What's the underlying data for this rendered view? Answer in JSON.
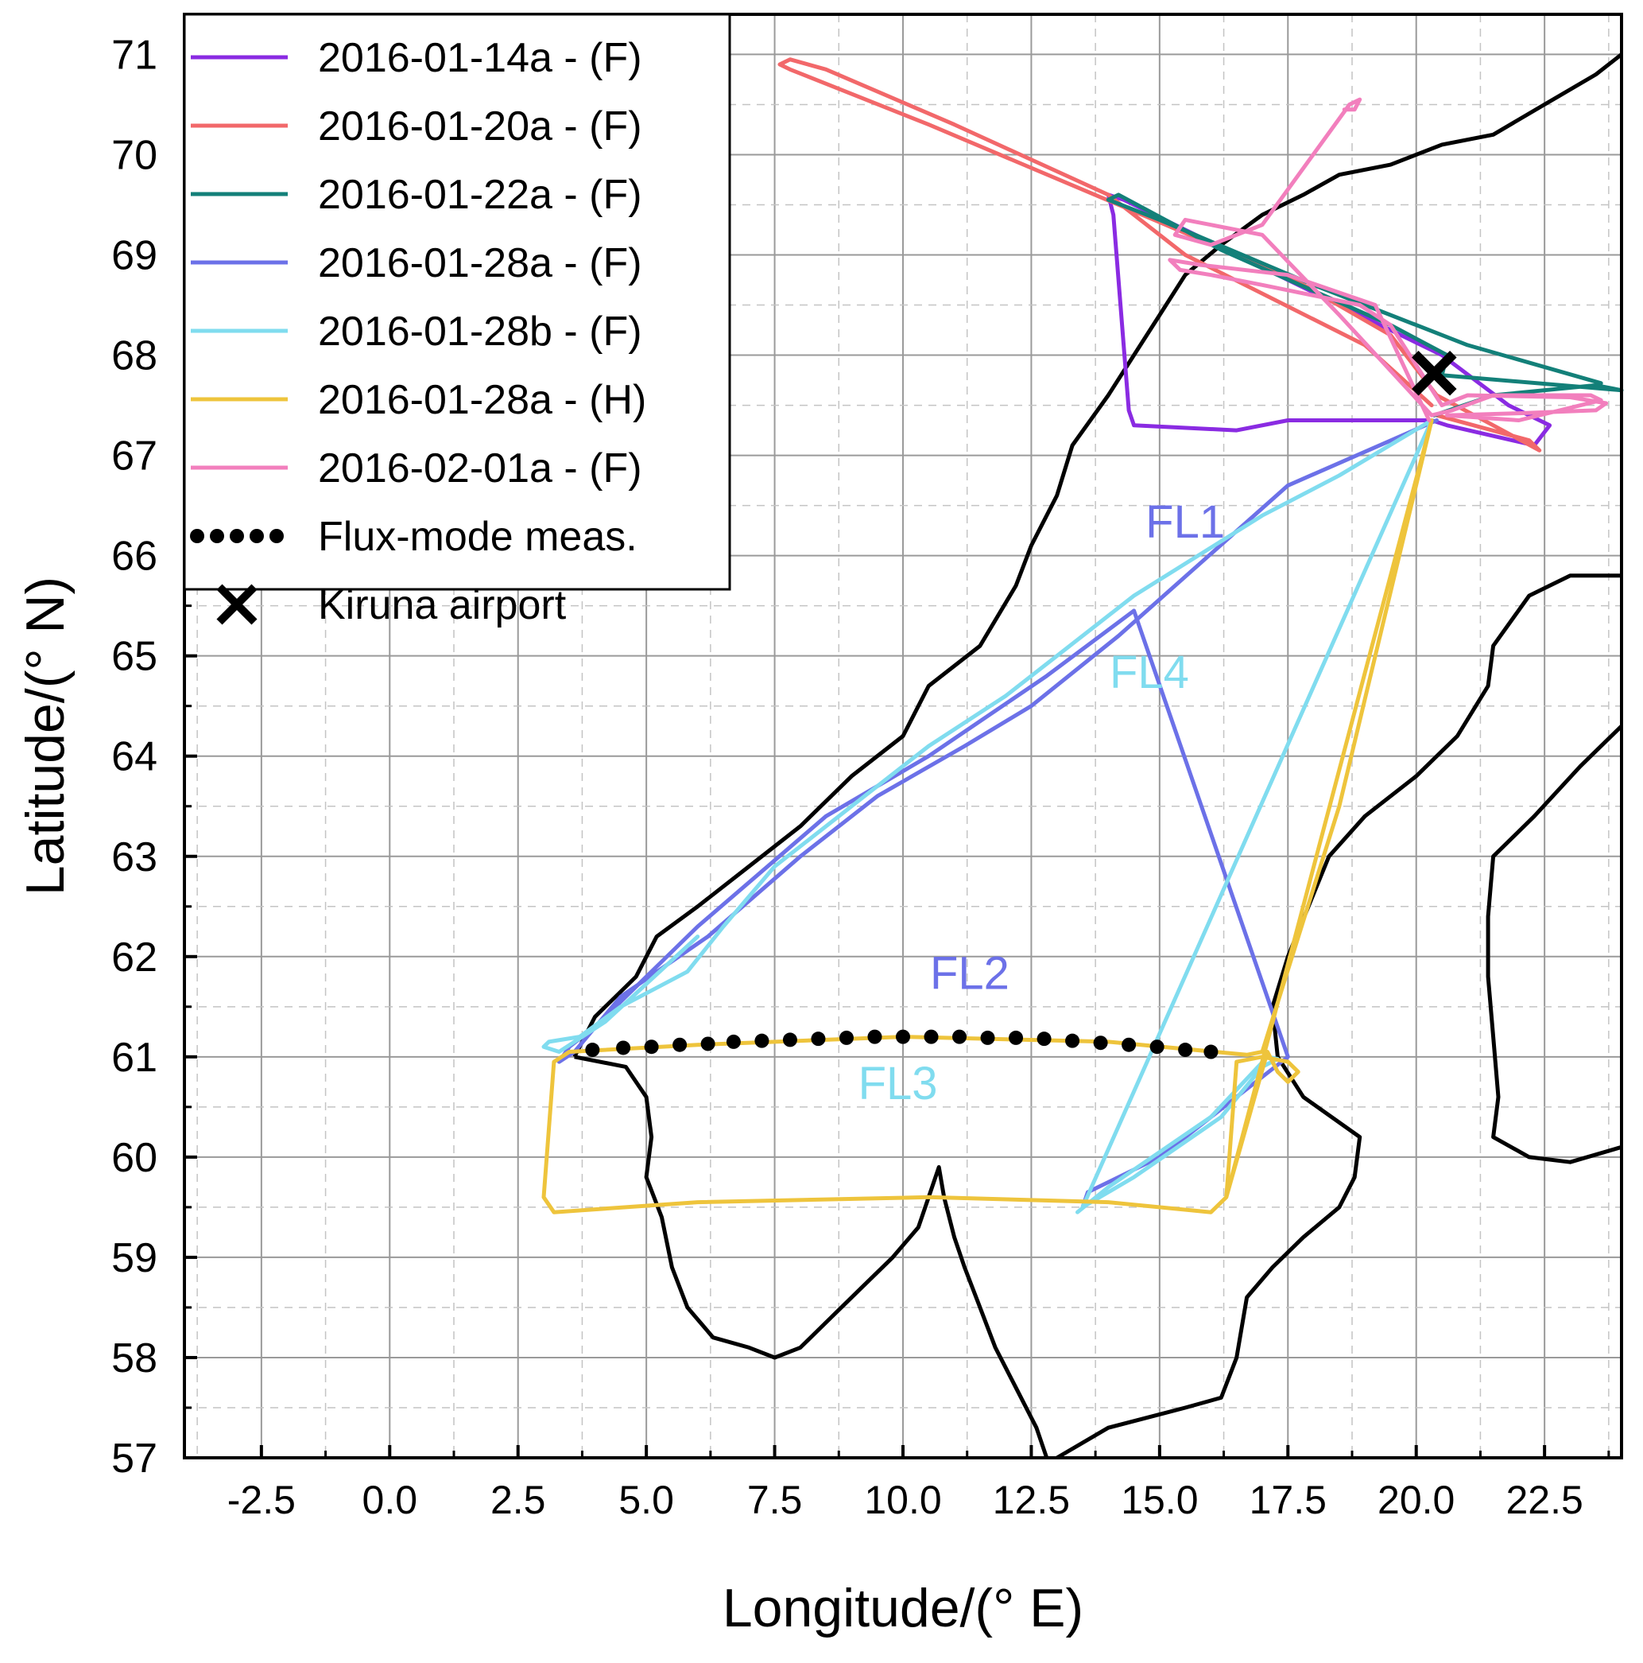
{
  "chart_data": {
    "type": "line",
    "xlabel": "Longitude/(° E)",
    "ylabel": "Latitude/(° N)",
    "xlim": [
      -4.0,
      24.0
    ],
    "ylim": [
      57.0,
      71.4
    ],
    "xticks": [
      "-2.5",
      "0.0",
      "2.5",
      "5.0",
      "7.5",
      "10.0",
      "12.5",
      "15.0",
      "17.5",
      "20.0",
      "22.5"
    ],
    "yticks": [
      "57",
      "58",
      "59",
      "60",
      "61",
      "62",
      "63",
      "64",
      "65",
      "66",
      "67",
      "68",
      "69",
      "70",
      "71"
    ],
    "grid": true,
    "legend_position": "top-left",
    "series": [
      {
        "name": "2016-01-14a - (F)",
        "color": "#8a2be2",
        "points": [
          [
            20.2,
            67.35
          ],
          [
            17.5,
            67.35
          ],
          [
            16.5,
            67.25
          ],
          [
            14.5,
            67.3
          ],
          [
            14.4,
            67.45
          ],
          [
            14.1,
            69.4
          ],
          [
            14.0,
            69.6
          ],
          [
            14.3,
            69.55
          ],
          [
            16.5,
            69.0
          ],
          [
            18.5,
            68.5
          ],
          [
            20.5,
            68.0
          ],
          [
            21.8,
            67.5
          ],
          [
            22.6,
            67.3
          ],
          [
            22.3,
            67.1
          ],
          [
            20.6,
            67.3
          ],
          [
            20.3,
            67.35
          ]
        ]
      },
      {
        "name": "2016-01-20a - (F)",
        "color": "#f2686a",
        "points": [
          [
            20.3,
            67.5
          ],
          [
            19.0,
            68.1
          ],
          [
            15.5,
            69.0
          ],
          [
            14.0,
            69.6
          ],
          [
            11.0,
            70.3
          ],
          [
            8.5,
            70.85
          ],
          [
            7.8,
            70.95
          ],
          [
            7.6,
            70.9
          ],
          [
            7.8,
            70.85
          ],
          [
            10.5,
            70.3
          ],
          [
            14.2,
            69.5
          ],
          [
            16.5,
            69.0
          ],
          [
            17.8,
            68.7
          ],
          [
            19.5,
            68.2
          ],
          [
            20.4,
            67.6
          ],
          [
            21.5,
            67.3
          ],
          [
            22.4,
            67.05
          ],
          [
            22.2,
            67.15
          ],
          [
            20.4,
            67.4
          ]
        ]
      },
      {
        "name": "2016-01-22a - (F)",
        "color": "#138079",
        "points": [
          [
            20.35,
            67.4
          ],
          [
            21.5,
            67.6
          ],
          [
            23.5,
            67.7
          ],
          [
            24.0,
            67.65
          ],
          [
            20.5,
            67.8
          ],
          [
            20.6,
            68.0
          ],
          [
            19.5,
            68.3
          ],
          [
            16.2,
            69.05
          ],
          [
            14.2,
            69.6
          ],
          [
            14.0,
            69.55
          ],
          [
            15.0,
            69.35
          ],
          [
            18.0,
            68.7
          ],
          [
            21.0,
            68.1
          ],
          [
            23.6,
            67.72
          ]
        ]
      },
      {
        "name": "2016-01-28a - (F)",
        "color": "#6c71e8",
        "points": [
          [
            20.4,
            67.35
          ],
          [
            17.5,
            66.7
          ],
          [
            14.2,
            65.2
          ],
          [
            12.5,
            64.5
          ],
          [
            11.2,
            64.1
          ],
          [
            9.5,
            63.6
          ],
          [
            8.0,
            63.0
          ],
          [
            6.2,
            62.2
          ],
          [
            4.5,
            61.6
          ],
          [
            3.6,
            61.05
          ],
          [
            3.3,
            60.95
          ],
          [
            3.5,
            61.1
          ],
          [
            4.0,
            61.3
          ],
          [
            6.0,
            62.3
          ],
          [
            8.5,
            63.4
          ],
          [
            10.5,
            64.0
          ],
          [
            12.8,
            64.8
          ],
          [
            14.5,
            65.45
          ],
          [
            17.5,
            61.0
          ],
          [
            16.5,
            60.6
          ],
          [
            15.0,
            60.0
          ],
          [
            13.6,
            59.65
          ],
          [
            13.5,
            59.5
          ]
        ]
      },
      {
        "name": "2016-01-28b - (F)",
        "color": "#80dcef",
        "points": [
          [
            13.4,
            59.45
          ],
          [
            14.0,
            59.7
          ],
          [
            16.0,
            60.4
          ],
          [
            17.1,
            61.0
          ],
          [
            17.3,
            60.98
          ],
          [
            17.0,
            60.9
          ],
          [
            16.2,
            60.4
          ],
          [
            14.5,
            59.8
          ],
          [
            13.5,
            59.5
          ],
          [
            20.3,
            67.35
          ],
          [
            18.5,
            66.8
          ],
          [
            17.0,
            66.4
          ],
          [
            14.5,
            65.6
          ],
          [
            12.0,
            64.6
          ],
          [
            10.5,
            64.1
          ],
          [
            9.0,
            63.5
          ],
          [
            7.5,
            62.9
          ],
          [
            6.5,
            62.3
          ],
          [
            5.8,
            61.85
          ],
          [
            4.5,
            61.5
          ],
          [
            3.7,
            61.2
          ],
          [
            3.1,
            61.15
          ],
          [
            3.0,
            61.1
          ],
          [
            3.3,
            61.05
          ],
          [
            4.2,
            61.35
          ],
          [
            6.0,
            62.2
          ]
        ]
      },
      {
        "name": "2016-01-28a - (H)",
        "color": "#eec43c",
        "points": [
          [
            20.3,
            67.35
          ],
          [
            18.5,
            63.5
          ],
          [
            17.0,
            61.05
          ],
          [
            16.7,
            61.02
          ],
          [
            14.0,
            61.15
          ],
          [
            10.0,
            61.2
          ],
          [
            6.0,
            61.12
          ],
          [
            3.5,
            61.05
          ],
          [
            3.2,
            60.95
          ],
          [
            3.0,
            59.6
          ],
          [
            3.2,
            59.45
          ],
          [
            6.0,
            59.55
          ],
          [
            10.5,
            59.6
          ],
          [
            14.0,
            59.55
          ],
          [
            16.0,
            59.45
          ],
          [
            16.3,
            59.6
          ],
          [
            16.5,
            60.95
          ],
          [
            17.0,
            61.0
          ],
          [
            17.5,
            60.95
          ],
          [
            17.7,
            60.85
          ],
          [
            17.5,
            60.75
          ],
          [
            17.3,
            60.85
          ],
          [
            17.1,
            61.05
          ],
          [
            16.3,
            59.6
          ],
          [
            20.3,
            67.35
          ]
        ]
      },
      {
        "name": "2016-02-01a - (F)",
        "color": "#f27fbd",
        "points": [
          [
            20.25,
            67.35
          ],
          [
            19.2,
            68.5
          ],
          [
            17.5,
            68.8
          ],
          [
            15.8,
            68.9
          ],
          [
            15.2,
            68.95
          ],
          [
            15.4,
            68.85
          ],
          [
            16.0,
            68.8
          ],
          [
            17.0,
            68.7
          ],
          [
            18.9,
            68.5
          ],
          [
            19.5,
            68.3
          ],
          [
            20.0,
            67.9
          ],
          [
            20.5,
            67.5
          ],
          [
            21.0,
            67.6
          ],
          [
            23.0,
            67.58
          ],
          [
            23.7,
            67.52
          ],
          [
            23.5,
            67.45
          ],
          [
            22.0,
            67.42
          ],
          [
            20.6,
            67.4
          ],
          [
            22.0,
            67.35
          ],
          [
            23.6,
            67.55
          ],
          [
            23.4,
            67.6
          ],
          [
            21.5,
            67.6
          ],
          [
            20.7,
            67.45
          ],
          [
            20.3,
            67.4
          ],
          [
            18.5,
            68.4
          ],
          [
            17.0,
            69.2
          ],
          [
            15.5,
            69.35
          ],
          [
            15.3,
            69.2
          ],
          [
            16.0,
            69.1
          ],
          [
            17.0,
            69.3
          ],
          [
            18.7,
            70.5
          ],
          [
            18.9,
            70.55
          ],
          [
            18.8,
            70.45
          ],
          [
            18.6,
            70.45
          ]
        ]
      },
      {
        "name": "Flux-mode meas.",
        "color": "#000000",
        "style": "dots",
        "points": [
          [
            3.95,
            61.07
          ],
          [
            4.55,
            61.09
          ],
          [
            5.1,
            61.1
          ],
          [
            5.65,
            61.12
          ],
          [
            6.2,
            61.13
          ],
          [
            6.7,
            61.15
          ],
          [
            7.25,
            61.16
          ],
          [
            7.8,
            61.17
          ],
          [
            8.35,
            61.18
          ],
          [
            8.9,
            61.19
          ],
          [
            9.45,
            61.2
          ],
          [
            10.0,
            61.2
          ],
          [
            10.55,
            61.2
          ],
          [
            11.1,
            61.2
          ],
          [
            11.65,
            61.19
          ],
          [
            12.2,
            61.19
          ],
          [
            12.75,
            61.18
          ],
          [
            13.3,
            61.16
          ],
          [
            13.85,
            61.14
          ],
          [
            14.4,
            61.12
          ],
          [
            14.95,
            61.1
          ],
          [
            15.5,
            61.07
          ],
          [
            16.0,
            61.05
          ]
        ]
      },
      {
        "name": "Kiruna airport",
        "color": "#000000",
        "style": "cross",
        "points": [
          [
            20.35,
            67.82
          ]
        ]
      }
    ],
    "annotations": [
      {
        "text": "FL1",
        "color": "#6c71e8",
        "x": 15.5,
        "y": 66.3
      },
      {
        "text": "FL2",
        "color": "#6c71e8",
        "x": 11.3,
        "y": 61.8
      },
      {
        "text": "FL3",
        "color": "#80dcef",
        "x": 9.9,
        "y": 60.7
      },
      {
        "text": "FL4",
        "color": "#80dcef",
        "x": 14.8,
        "y": 64.8
      }
    ],
    "coastlines": [
      [
        [
          3.6,
          61.0
        ],
        [
          4.0,
          61.4
        ],
        [
          4.8,
          61.8
        ],
        [
          5.2,
          62.2
        ],
        [
          6.0,
          62.5
        ],
        [
          7.0,
          62.9
        ],
        [
          8.0,
          63.3
        ],
        [
          9.0,
          63.8
        ],
        [
          10.0,
          64.2
        ],
        [
          10.5,
          64.7
        ],
        [
          11.5,
          65.1
        ],
        [
          12.2,
          65.7
        ],
        [
          12.5,
          66.1
        ],
        [
          13.0,
          66.6
        ],
        [
          13.3,
          67.1
        ],
        [
          14.0,
          67.6
        ],
        [
          14.5,
          68.0
        ],
        [
          15.0,
          68.4
        ],
        [
          15.5,
          68.8
        ],
        [
          16.2,
          69.1
        ],
        [
          17.0,
          69.4
        ],
        [
          17.8,
          69.6
        ],
        [
          18.5,
          69.8
        ],
        [
          19.5,
          69.9
        ],
        [
          20.5,
          70.1
        ],
        [
          21.5,
          70.2
        ],
        [
          22.5,
          70.5
        ],
        [
          23.5,
          70.8
        ],
        [
          24.0,
          71.0
        ]
      ],
      [
        [
          3.6,
          61.0
        ],
        [
          4.6,
          60.9
        ],
        [
          5.0,
          60.6
        ],
        [
          5.1,
          60.2
        ],
        [
          5.0,
          59.8
        ],
        [
          5.3,
          59.4
        ],
        [
          5.5,
          58.9
        ],
        [
          5.8,
          58.5
        ],
        [
          6.3,
          58.2
        ],
        [
          7.0,
          58.1
        ],
        [
          7.5,
          58.0
        ],
        [
          8.0,
          58.1
        ],
        [
          8.6,
          58.4
        ],
        [
          9.2,
          58.7
        ],
        [
          9.8,
          59.0
        ],
        [
          10.3,
          59.3
        ],
        [
          10.5,
          59.6
        ],
        [
          10.7,
          59.9
        ],
        [
          10.8,
          59.6
        ],
        [
          11.0,
          59.2
        ],
        [
          11.2,
          58.9
        ],
        [
          11.5,
          58.5
        ],
        [
          11.8,
          58.1
        ],
        [
          12.2,
          57.7
        ],
        [
          12.6,
          57.3
        ],
        [
          12.8,
          57.0
        ]
      ],
      [
        [
          13.0,
          57.0
        ],
        [
          14.0,
          57.3
        ],
        [
          15.5,
          57.5
        ],
        [
          16.2,
          57.6
        ],
        [
          16.5,
          58.0
        ],
        [
          16.7,
          58.6
        ],
        [
          17.2,
          58.9
        ],
        [
          17.8,
          59.2
        ],
        [
          18.5,
          59.5
        ],
        [
          18.8,
          59.8
        ],
        [
          18.9,
          60.2
        ],
        [
          17.8,
          60.6
        ],
        [
          17.3,
          61.0
        ],
        [
          17.2,
          61.5
        ],
        [
          17.5,
          62.0
        ],
        [
          17.9,
          62.5
        ],
        [
          18.3,
          63.0
        ],
        [
          19.0,
          63.4
        ],
        [
          20.0,
          63.8
        ],
        [
          20.8,
          64.2
        ],
        [
          21.4,
          64.7
        ],
        [
          21.5,
          65.1
        ],
        [
          22.2,
          65.6
        ],
        [
          23.0,
          65.8
        ],
        [
          24.0,
          65.8
        ]
      ],
      [
        [
          24.0,
          64.3
        ],
        [
          23.2,
          63.9
        ],
        [
          22.3,
          63.4
        ],
        [
          21.5,
          63.0
        ],
        [
          21.4,
          62.4
        ],
        [
          21.4,
          61.8
        ],
        [
          21.5,
          61.2
        ],
        [
          21.6,
          60.6
        ],
        [
          21.5,
          60.2
        ],
        [
          22.2,
          60.0
        ],
        [
          23.0,
          59.95
        ],
        [
          24.0,
          60.1
        ]
      ]
    ]
  }
}
